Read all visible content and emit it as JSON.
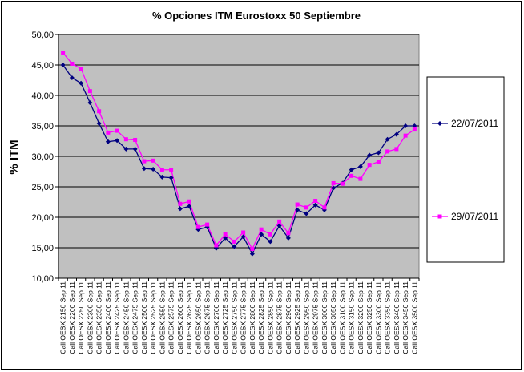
{
  "chart_data": {
    "type": "line",
    "title": "% Opciones ITM Eurostoxx 50 Septiembre",
    "ylabel": "% ITM",
    "xlabel": "",
    "ylim": [
      10,
      50
    ],
    "yticks": [
      "10,00",
      "15,00",
      "20,00",
      "25,00",
      "30,00",
      "35,00",
      "40,00",
      "45,00",
      "50,00"
    ],
    "grid": "horizontal",
    "legend_position": "right",
    "categories": [
      "Call OESX 2150 Sep 11",
      "Call OESX 2200 Sep 11",
      "Call OESX 2250 Sep 11",
      "Call OESX 2300 Sep 11",
      "Call OESX 2350 Sep 11",
      "Call OESX 2400 Sep 11",
      "Call OESX 2425 Sep 11",
      "Call OESX 2450 Sep 11",
      "Call OESX 2475 Sep 11",
      "Call OESX 2500 Sep 11",
      "Call OESX 2525 Sep 11",
      "Call OESX 2550 Sep 11",
      "Call OESX 2575 Sep 11",
      "Call OESX 2600 Sep 11",
      "Call OESX 2625 Sep 11",
      "Call OESX 2650 Sep 11",
      "Call OESX 2675 Sep 11",
      "Call OESX 2700 Sep 11",
      "Call OESX 2725 Sep 11",
      "Call OESX 2750 Sep 11",
      "Call OESX 2775 Sep 11",
      "Call OESX 2800 Sep 11",
      "Call OESX 2825 Sep 11",
      "Call OESX 2850 Sep 11",
      "Call OESX 2875 Sep 11",
      "Call OESX 2900 Sep 11",
      "Call OESX 2925 Sep 11",
      "Call OESX 2950 Sep 11",
      "Call OESX 2975 Sep 11",
      "Call OESX 3000 Sep 11",
      "Call OESX 3050 Sep 11",
      "Call OESX 3100 Sep 11",
      "Call OESX 3150 Sep 11",
      "Call OESX 3200 Sep 11",
      "Call OESX 3250 Sep 11",
      "Call OESX 3300 Sep 11",
      "Call OESX 3350 Sep 11",
      "Call OESX 3400 Sep 11",
      "Call OESX 3450 Sep 11",
      "Call OESX 3500 Sep 11"
    ],
    "series": [
      {
        "name": "22/07/2011",
        "color": "#000080",
        "marker": "diamond",
        "values": [
          45.0,
          42.9,
          42.0,
          38.8,
          35.4,
          32.4,
          32.6,
          31.2,
          31.2,
          28.0,
          27.9,
          26.6,
          26.5,
          21.4,
          21.8,
          18.0,
          18.4,
          14.9,
          16.6,
          15.2,
          16.8,
          14.0,
          17.2,
          16.0,
          18.6,
          16.6,
          21.2,
          20.6,
          22.0,
          21.2,
          24.8,
          25.6,
          27.8,
          28.3,
          30.2,
          30.6,
          32.8,
          33.6,
          35.0,
          35.0
        ]
      },
      {
        "name": "29/07/2011",
        "color": "#ff00ff",
        "marker": "square",
        "values": [
          47.0,
          45.2,
          44.4,
          40.7,
          37.4,
          33.9,
          34.2,
          32.8,
          32.7,
          29.2,
          29.3,
          27.8,
          27.8,
          22.2,
          22.6,
          18.4,
          18.8,
          15.4,
          17.2,
          16.0,
          17.5,
          14.8,
          18.0,
          17.2,
          19.3,
          17.4,
          22.1,
          21.6,
          22.7,
          21.6,
          25.6,
          25.5,
          26.8,
          26.3,
          28.6,
          29.1,
          30.8,
          31.2,
          33.4,
          34.4
        ]
      }
    ]
  }
}
